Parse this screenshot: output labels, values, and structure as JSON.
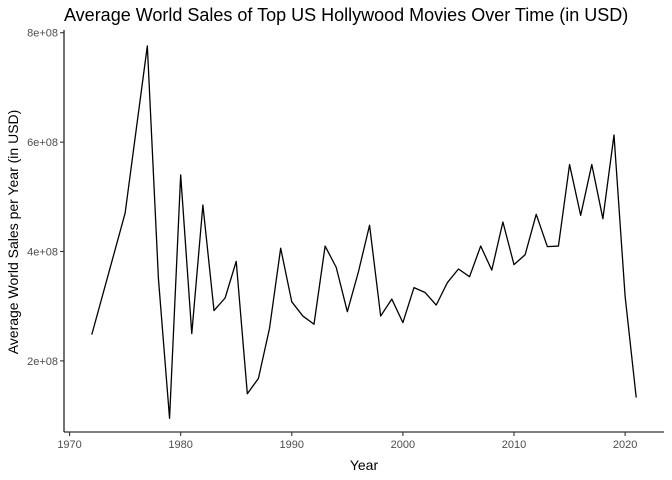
{
  "chart_data": {
    "type": "line",
    "title": "Average World Sales of Top US Hollywood Movies Over Time (in USD)",
    "xlabel": "Year",
    "ylabel": "Average World Sales per Year (in USD)",
    "xlim": [
      1969.5,
      2023.5
    ],
    "ylim": [
      70000000,
      805000000
    ],
    "xticks": [
      1970,
      1980,
      1990,
      2000,
      2010,
      2020
    ],
    "xtick_labels": [
      "1970",
      "1980",
      "1990",
      "2000",
      "2010",
      "2020"
    ],
    "yticks": [
      200000000,
      400000000,
      600000000,
      800000000
    ],
    "ytick_labels": [
      "2e+08",
      "4e+08",
      "6e+08",
      "8e+08"
    ],
    "grid": false,
    "series": [
      {
        "color": "#000000",
        "x": [
          1972,
          1975,
          1977,
          1978,
          1979,
          1980,
          1981,
          1982,
          1983,
          1984,
          1985,
          1986,
          1987,
          1988,
          1989,
          1990,
          1991,
          1992,
          1993,
          1994,
          1995,
          1996,
          1997,
          1998,
          1999,
          2000,
          2001,
          2002,
          2003,
          2004,
          2005,
          2006,
          2007,
          2008,
          2009,
          2010,
          2011,
          2012,
          2013,
          2014,
          2015,
          2016,
          2017,
          2018,
          2019,
          2020,
          2021
        ],
        "y": [
          248000000,
          470000000,
          776000000,
          350000000,
          95000000,
          540000000,
          250000000,
          485000000,
          292000000,
          315000000,
          382000000,
          140000000,
          168000000,
          260000000,
          406000000,
          308000000,
          282000000,
          267000000,
          410000000,
          371000000,
          290000000,
          363000000,
          448000000,
          282000000,
          313000000,
          270000000,
          334000000,
          325000000,
          302000000,
          343000000,
          368000000,
          354000000,
          410000000,
          366000000,
          454000000,
          376000000,
          394000000,
          468000000,
          409000000,
          410000000,
          559000000,
          466000000,
          559000000,
          460000000,
          613000000,
          318000000,
          133000000
        ]
      }
    ]
  }
}
